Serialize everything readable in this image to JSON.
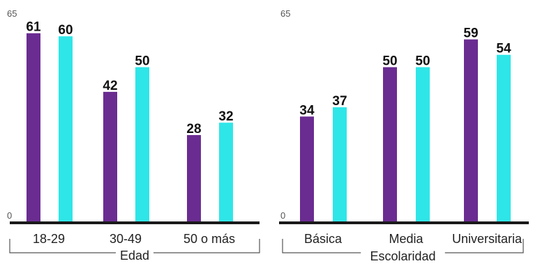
{
  "chart_data": [
    {
      "type": "bar",
      "categories": [
        "18-29",
        "30-49",
        "50 o más"
      ],
      "group_label": "Edad",
      "series": [
        {
          "values": [
            61,
            42,
            28
          ]
        },
        {
          "values": [
            60,
            50,
            32
          ]
        }
      ],
      "ylim": [
        0,
        65
      ],
      "yticks": [
        "65",
        "0"
      ],
      "colors": [
        "#6a2c91",
        "#2ee6e8"
      ],
      "grid": false
    },
    {
      "type": "bar",
      "categories": [
        "Básica",
        "Media",
        "Universitaria"
      ],
      "group_label": "Escolaridad",
      "series": [
        {
          "values": [
            34,
            50,
            59
          ]
        },
        {
          "values": [
            37,
            50,
            54
          ]
        }
      ],
      "ylim": [
        0,
        65
      ],
      "yticks": [
        "65",
        "0"
      ],
      "colors": [
        "#6a2c91",
        "#2ee6e8"
      ],
      "grid": false
    }
  ]
}
